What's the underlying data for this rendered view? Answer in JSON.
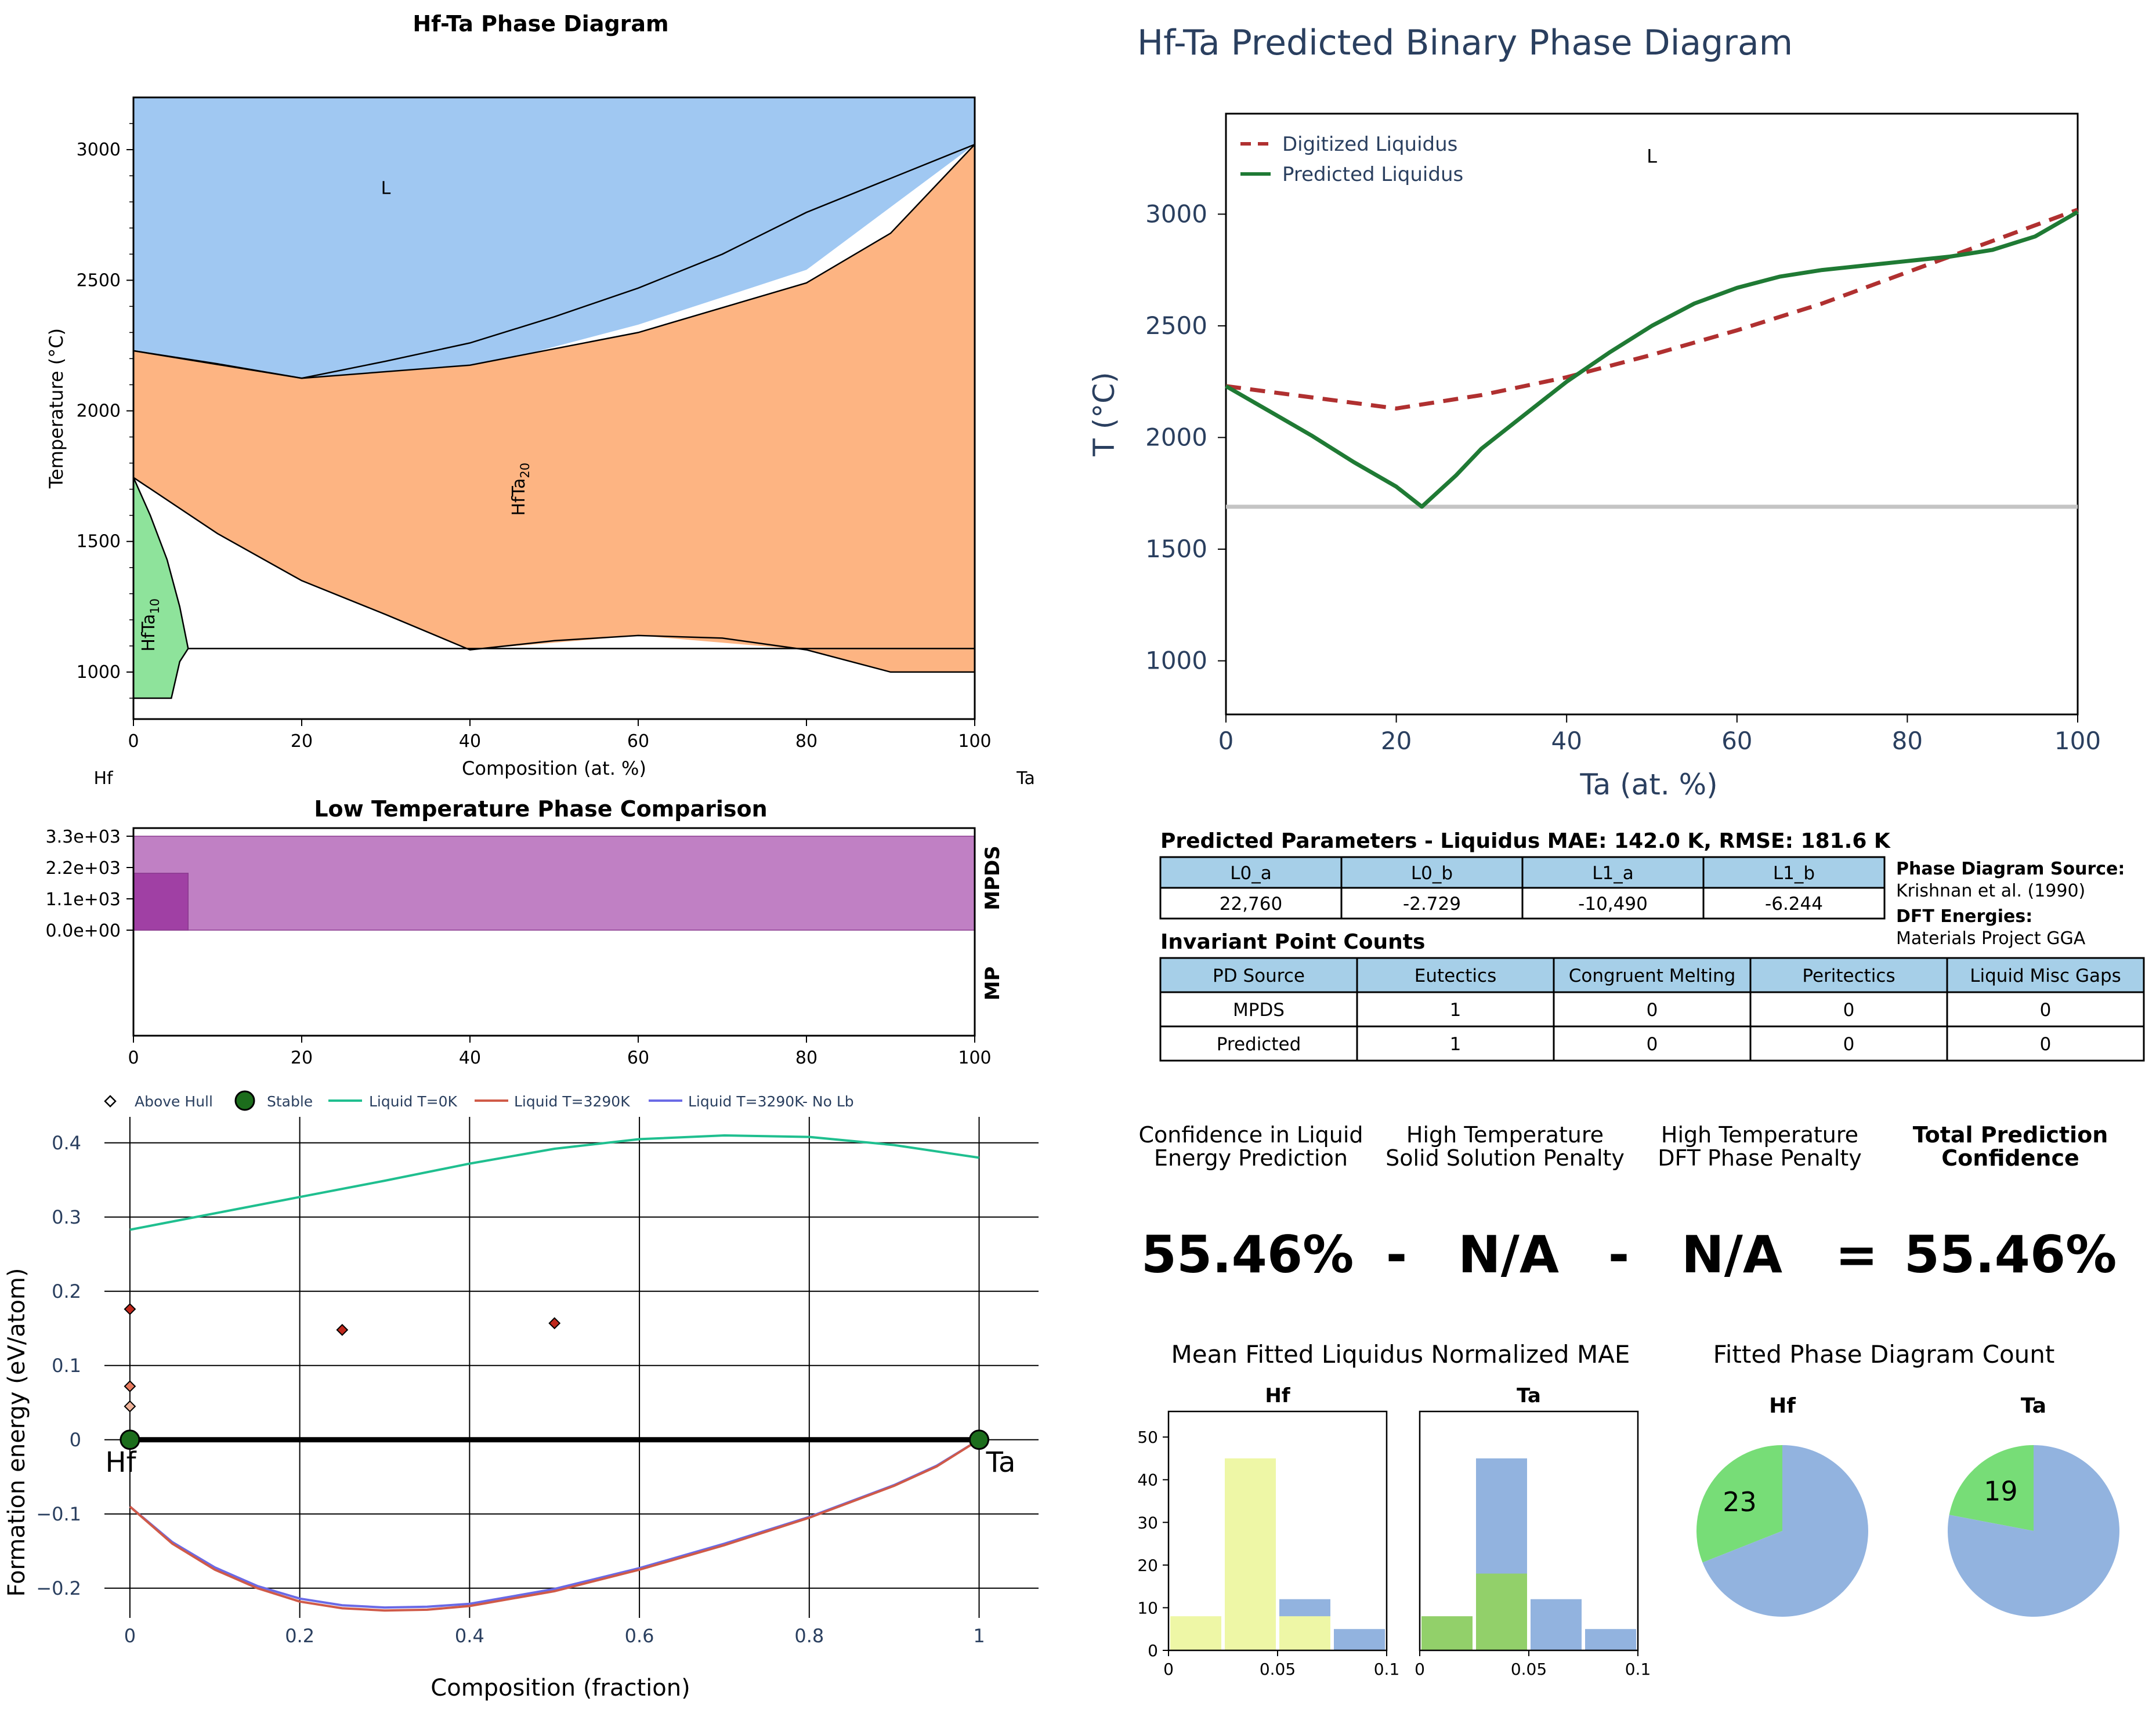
{
  "chart_data": [
    {
      "id": "phase_diagram",
      "type": "area",
      "title": "Hf-Ta Phase Diagram",
      "xlabel": "Composition (at. %)",
      "ylabel": "Temperature (°C)",
      "xlim": [
        0,
        100
      ],
      "ylim": [
        820,
        3200
      ],
      "xticks": [
        "0",
        "20",
        "40",
        "60",
        "80",
        "100"
      ],
      "yticks": [
        "1000",
        "1500",
        "2000",
        "2500",
        "3000"
      ],
      "left_element": "Hf",
      "right_element": "Ta",
      "regions": [
        {
          "label": "L",
          "color": "#a0c8f2",
          "label_at": [
            30,
            2830
          ],
          "points": [
            [
              0,
              3200
            ],
            [
              100,
              3200
            ],
            [
              100,
              3020
            ],
            [
              80,
              2540
            ],
            [
              60,
              2330
            ],
            [
              40,
              2160
            ],
            [
              20,
              2125
            ],
            [
              0,
              2230
            ]
          ]
        },
        {
          "label": "HfTa",
          "subscript": "20",
          "color": "#fdb482",
          "label_at": [
            46.5,
            1700
          ],
          "points": [
            [
              0,
              2230
            ],
            [
              20,
              2125
            ],
            [
              40,
              2175
            ],
            [
              60,
              2300
            ],
            [
              80,
              2490
            ],
            [
              90,
              2680
            ],
            [
              100,
              3020
            ],
            [
              100,
              1000
            ],
            [
              90,
              1000
            ],
            [
              80,
              1085
            ],
            [
              60,
              1140
            ],
            [
              40,
              1085
            ],
            [
              30,
              1220
            ],
            [
              20,
              1350
            ],
            [
              10,
              1530
            ],
            [
              0,
              1745
            ]
          ]
        },
        {
          "label": "HfTa",
          "subscript": "10",
          "color": "#8ee39b",
          "label_at": [
            2.5,
            1180
          ],
          "points": [
            [
              0,
              1745
            ],
            [
              2,
              1600
            ],
            [
              4,
              1430
            ],
            [
              5.5,
              1250
            ],
            [
              6.5,
              1090
            ],
            [
              5.5,
              1040
            ],
            [
              4.5,
              900
            ],
            [
              0,
              900
            ]
          ]
        }
      ],
      "lines": [
        [
          [
            0,
            2230
          ],
          [
            20,
            2125
          ],
          [
            40,
            2175
          ],
          [
            60,
            2300
          ],
          [
            80,
            2490
          ],
          [
            90,
            2680
          ],
          [
            100,
            3020
          ]
        ],
        [
          [
            0,
            2230
          ],
          [
            10,
            2180
          ],
          [
            20,
            2125
          ],
          [
            30,
            2190
          ],
          [
            40,
            2260
          ],
          [
            50,
            2360
          ],
          [
            60,
            2470
          ],
          [
            70,
            2600
          ],
          [
            80,
            2760
          ],
          [
            90,
            2890
          ],
          [
            100,
            3020
          ]
        ],
        [
          [
            0,
            1745
          ],
          [
            10,
            1530
          ],
          [
            20,
            1350
          ],
          [
            30,
            1220
          ],
          [
            40,
            1085
          ],
          [
            50,
            1120
          ],
          [
            60,
            1140
          ],
          [
            70,
            1130
          ],
          [
            80,
            1085
          ],
          [
            90,
            1000
          ],
          [
            100,
            1000
          ]
        ],
        [
          [
            6.5,
            1090
          ],
          [
            100,
            1090
          ]
        ],
        [
          [
            0,
            1745
          ],
          [
            2,
            1600
          ],
          [
            4,
            1430
          ],
          [
            5.5,
            1250
          ],
          [
            6.5,
            1090
          ],
          [
            5.5,
            1040
          ],
          [
            4.5,
            900
          ],
          [
            0,
            900
          ]
        ]
      ]
    },
    {
      "id": "predicted_liquidus",
      "type": "line",
      "title": "Hf-Ta Predicted Binary Phase Diagram",
      "xlabel": "Ta (at. %)",
      "ylabel": "T (°C)",
      "xlim": [
        0,
        100
      ],
      "ylim": [
        760,
        3450
      ],
      "xticks": [
        "0",
        "20",
        "40",
        "60",
        "80",
        "100"
      ],
      "yticks": [
        "1000",
        "1500",
        "2000",
        "2500",
        "3000"
      ],
      "phase_label": "L",
      "phase_label_at": [
        50,
        3230
      ],
      "hline": 1690,
      "series": [
        {
          "name": "Digitized Liquidus",
          "color": "#b03030",
          "dash": true,
          "x": [
            0,
            10,
            20,
            30,
            40,
            50,
            60,
            70,
            80,
            90,
            100
          ],
          "y": [
            2230,
            2180,
            2130,
            2190,
            2270,
            2370,
            2480,
            2600,
            2740,
            2880,
            3020
          ]
        },
        {
          "name": "Predicted Liquidus",
          "color": "#1f7a34",
          "dash": false,
          "x": [
            0,
            5,
            10,
            15,
            20,
            23,
            27,
            30,
            35,
            40,
            45,
            50,
            55,
            60,
            65,
            70,
            75,
            80,
            85,
            90,
            95,
            100
          ],
          "y": [
            2230,
            2120,
            2010,
            1890,
            1780,
            1690,
            1830,
            1950,
            2100,
            2250,
            2380,
            2500,
            2600,
            2670,
            2720,
            2750,
            2770,
            2790,
            2810,
            2840,
            2900,
            3010
          ]
        }
      ]
    },
    {
      "id": "low_temp_comparison",
      "type": "bar",
      "title": "Low Temperature Phase Comparison",
      "xlim": [
        0,
        100
      ],
      "xticks": [
        "0",
        "20",
        "40",
        "60",
        "80",
        "100"
      ],
      "yticks": [
        "3.3e+03",
        "2.2e+03",
        "1.1e+03",
        "0.0e+00"
      ],
      "ylim": [
        0,
        3300
      ],
      "row_labels": [
        "MPDS",
        "MP"
      ],
      "bars": [
        {
          "x0": 0,
          "x1": 100,
          "y0": 0,
          "y1": 3300,
          "color": "#c080c4"
        },
        {
          "x0": 0,
          "x1": 6.5,
          "y0": 0,
          "y1": 2000,
          "color": "#a040a4"
        }
      ]
    },
    {
      "id": "formation_energy",
      "type": "scatter",
      "xlabel": "Composition (fraction)",
      "ylabel": "Formation energy (eV/atom)",
      "xlim": [
        -0.03,
        1.07
      ],
      "ylim": [
        -0.24,
        0.435
      ],
      "xticks": [
        0,
        0.2,
        0.4,
        0.6,
        0.8,
        1
      ],
      "xtick_labels": [
        "0",
        "0.2",
        "0.4",
        "0.6",
        "0.8",
        "1"
      ],
      "yticks": [
        0.4,
        0.3,
        0.2,
        0.1,
        0,
        -0.1,
        -0.2
      ],
      "ytick_labels": [
        "0.4",
        "0.3",
        "0.2",
        "0.1",
        "0",
        "−0.1",
        "−0.2"
      ],
      "end_labels": [
        "Hf",
        "Ta"
      ],
      "legend": [
        "Above Hull",
        "Stable",
        "Liquid T=0K",
        "Liquid T=3290K",
        "Liquid T=3290K- No Lb"
      ],
      "above_hull": [
        {
          "x": 0,
          "y": 0.176,
          "color": "#c0281c"
        },
        {
          "x": 0,
          "y": 0.072,
          "color": "#e87a5e"
        },
        {
          "x": 0,
          "y": 0.045,
          "color": "#f0b39a"
        },
        {
          "x": 0.25,
          "y": 0.148,
          "color": "#c0281c"
        },
        {
          "x": 0.5,
          "y": 0.157,
          "color": "#c0281c"
        }
      ],
      "stable": [
        {
          "x": 0,
          "y": 0
        },
        {
          "x": 1,
          "y": 0
        }
      ],
      "liquid_0K": {
        "color": "#1fbf8f",
        "x": [
          0,
          0.1,
          0.2,
          0.3,
          0.4,
          0.5,
          0.6,
          0.7,
          0.8,
          0.9,
          1
        ],
        "y": [
          0.283,
          0.305,
          0.327,
          0.349,
          0.372,
          0.392,
          0.405,
          0.41,
          0.408,
          0.397,
          0.38
        ]
      },
      "liquid_3290K": {
        "color": "#d05a48",
        "x": [
          0,
          0.05,
          0.1,
          0.15,
          0.2,
          0.25,
          0.3,
          0.35,
          0.4,
          0.5,
          0.6,
          0.7,
          0.8,
          0.9,
          0.95,
          1
        ],
        "y": [
          -0.09,
          -0.14,
          -0.175,
          -0.2,
          -0.218,
          -0.227,
          -0.23,
          -0.229,
          -0.224,
          -0.204,
          -0.175,
          -0.142,
          -0.105,
          -0.062,
          -0.036,
          0
        ]
      },
      "liquid_3290K_noLb": {
        "color": "#6a6ae6",
        "x": [
          0,
          0.05,
          0.1,
          0.15,
          0.2,
          0.25,
          0.3,
          0.35,
          0.4,
          0.5,
          0.6,
          0.7,
          0.8,
          0.9,
          0.95,
          1
        ],
        "y": [
          -0.09,
          -0.138,
          -0.172,
          -0.197,
          -0.214,
          -0.223,
          -0.226,
          -0.225,
          -0.221,
          -0.201,
          -0.173,
          -0.14,
          -0.104,
          -0.061,
          -0.035,
          0
        ]
      }
    },
    {
      "id": "mae_hist_hf",
      "type": "bar",
      "title": "Hf",
      "xlim": [
        0,
        0.1
      ],
      "ylim": [
        0,
        56
      ],
      "xticks": [
        "0",
        "0.05",
        "0.1"
      ],
      "yticks": [
        "0",
        "10",
        "20",
        "30",
        "40",
        "50"
      ],
      "bars": [
        {
          "x0": 0,
          "x1": 0.025,
          "value": 8,
          "color": "#eef7a6"
        },
        {
          "x0": 0.025,
          "x1": 0.05,
          "value": 45,
          "color": "#eef7a6"
        },
        {
          "x0": 0.05,
          "x1": 0.075,
          "value": 12,
          "color": "#92b3df"
        },
        {
          "x0": 0.05,
          "x1": 0.075,
          "value": 8,
          "color": "#eef7a6"
        },
        {
          "x0": 0.075,
          "x1": 0.1,
          "value": 5,
          "color": "#92b3df"
        }
      ]
    },
    {
      "id": "mae_hist_ta",
      "type": "bar",
      "title": "Ta",
      "xlim": [
        0,
        0.1
      ],
      "ylim": [
        0,
        56
      ],
      "xticks": [
        "0",
        "0.05",
        "0.1"
      ],
      "bars": [
        {
          "x0": 0,
          "x1": 0.025,
          "value": 8,
          "color": "#92d06a"
        },
        {
          "x0": 0.025,
          "x1": 0.05,
          "value": 45,
          "color": "#92b3df"
        },
        {
          "x0": 0.025,
          "x1": 0.05,
          "value": 18,
          "color": "#92d06a"
        },
        {
          "x0": 0.05,
          "x1": 0.075,
          "value": 12,
          "color": "#92b3df"
        },
        {
          "x0": 0.075,
          "x1": 0.1,
          "value": 5,
          "color": "#92b3df"
        }
      ]
    },
    {
      "id": "pie_hf",
      "type": "pie",
      "title": "Hf",
      "slices": [
        {
          "label": "23",
          "fraction": 0.31,
          "color": "#77dd77",
          "show_label": true
        },
        {
          "label": "",
          "fraction": 0.69,
          "color": "#92b3df",
          "show_label": false
        }
      ]
    },
    {
      "id": "pie_ta",
      "type": "pie",
      "title": "Ta",
      "slices": [
        {
          "label": "19",
          "fraction": 0.22,
          "color": "#77dd77",
          "show_label": true
        },
        {
          "label": "",
          "fraction": 0.78,
          "color": "#92b3df",
          "show_label": false
        }
      ]
    }
  ],
  "params_table": {
    "title": "Predicted Parameters - Liquidus MAE: 142.0 K, RMSE: 181.6 K",
    "headers": [
      "L0_a",
      "L0_b",
      "L1_a",
      "L1_b"
    ],
    "values": [
      "22,760",
      "-2.729",
      "-10,490",
      "-6.244"
    ]
  },
  "source_info": {
    "pd_source_label": "Phase Diagram Source:",
    "pd_source_value": "Krishnan et al. (1990)",
    "dft_label": "DFT Energies:",
    "dft_value": "Materials Project GGA"
  },
  "invariant_table": {
    "title": "Invariant Point Counts",
    "headers": [
      "PD Source",
      "Eutectics",
      "Congruent Melting",
      "Peritectics",
      "Liquid Misc Gaps"
    ],
    "rows": [
      [
        "MPDS",
        "1",
        "0",
        "0",
        "0"
      ],
      [
        "Predicted",
        "1",
        "0",
        "0",
        "0"
      ]
    ]
  },
  "confidence": {
    "headers": [
      [
        "Confidence in Liquid",
        "Energy Prediction"
      ],
      [
        "High Temperature",
        "Solid Solution Penalty"
      ],
      [
        "High Temperature",
        "DFT Phase Penalty"
      ],
      [
        "Total Prediction",
        "Confidence"
      ]
    ],
    "values": [
      "55.46%",
      "-",
      "N/A",
      "-",
      "N/A",
      "=",
      "55.46%"
    ]
  },
  "mae_title": "Mean Fitted Liquidus Normalized MAE",
  "count_title": "Fitted Phase Diagram Count",
  "colors": {
    "header_fill": "#a6cfe8",
    "title_blue": "#2a3f5f"
  }
}
